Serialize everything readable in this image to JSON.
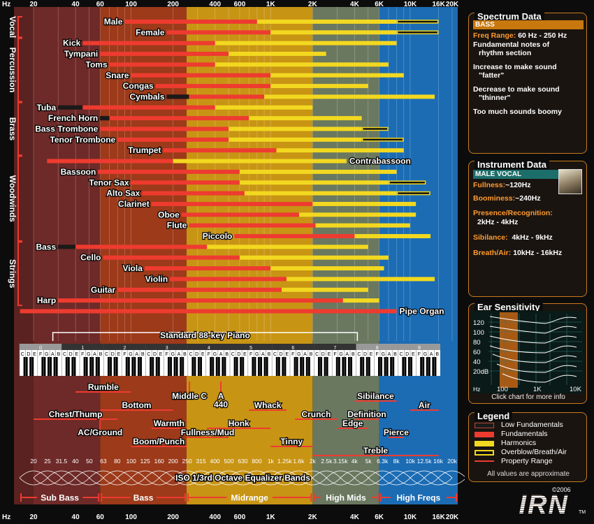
{
  "chart_data": {
    "type": "range-bar",
    "x_scale": "log",
    "xlim": [
      16,
      20000
    ],
    "top_axis": {
      "unit": "Hz",
      "ticks": [
        "20",
        "40",
        "60",
        "100",
        "200",
        "400",
        "600",
        "1K",
        "2K",
        "4K",
        "6K",
        "10K",
        "16K",
        "20K"
      ]
    },
    "bottom_axis": {
      "unit": "Hz",
      "ticks": [
        "20",
        "40",
        "60",
        "100",
        "200",
        "400",
        "600",
        "1K",
        "2K",
        "4K",
        "6K",
        "10K",
        "16K",
        "20K"
      ]
    },
    "regions": [
      {
        "name": "Sub Bass",
        "from": 20,
        "to": 60,
        "color": "#6e2a28"
      },
      {
        "name": "Bass",
        "from": 60,
        "to": 250,
        "color": "#9c3a1a"
      },
      {
        "name": "Midrange",
        "from": 250,
        "to": 2000,
        "color": "#c89414"
      },
      {
        "name": "High Mids",
        "from": 2000,
        "to": 6000,
        "color": "#6a7860"
      },
      {
        "name": "High Freqs",
        "from": 6000,
        "to": 20000,
        "color": "#1c6cb4"
      }
    ],
    "groups": [
      {
        "name": "Vocal",
        "rows": [
          0,
          1
        ]
      },
      {
        "name": "Percussion",
        "rows": [
          2,
          7
        ]
      },
      {
        "name": "Brass",
        "rows": [
          8,
          12
        ]
      },
      {
        "name": "Woodwinds",
        "rows": [
          13,
          20
        ]
      },
      {
        "name": "Strings",
        "rows": [
          21,
          26
        ]
      }
    ],
    "instruments": [
      {
        "name": "Male",
        "side": "left",
        "fund": [
          90,
          800
        ],
        "harm": [
          800,
          8000
        ],
        "over": [
          8000,
          16000
        ]
      },
      {
        "name": "Female",
        "side": "left",
        "fund": [
          180,
          1000
        ],
        "harm": [
          1000,
          8000
        ],
        "over": [
          8000,
          16000
        ]
      },
      {
        "name": "Kick",
        "side": "left",
        "fund": [
          45,
          400
        ],
        "harm": [
          400,
          8000
        ]
      },
      {
        "name": "Tympani",
        "side": "left",
        "fund": [
          60,
          500
        ],
        "harm": [
          500,
          2500
        ]
      },
      {
        "name": "Toms",
        "side": "left",
        "fund": [
          70,
          400
        ],
        "harm": [
          400,
          7000
        ]
      },
      {
        "name": "Snare",
        "side": "left",
        "fund": [
          100,
          1000
        ],
        "harm": [
          1000,
          9000
        ]
      },
      {
        "name": "Congas",
        "side": "left",
        "fund": [
          150,
          1000
        ],
        "harm": [
          1000,
          5000
        ]
      },
      {
        "name": "Cymbals",
        "side": "left",
        "low": [
          180,
          260
        ],
        "fund": [
          260,
          900
        ],
        "harm": [
          900,
          15000
        ]
      },
      {
        "name": "Tuba",
        "side": "left",
        "low": [
          30,
          45
        ],
        "fund": [
          45,
          400
        ],
        "harm": [
          400,
          2000
        ]
      },
      {
        "name": "French Horn",
        "side": "left",
        "low": [
          60,
          70
        ],
        "fund": [
          70,
          700
        ],
        "harm": [
          700,
          4500
        ]
      },
      {
        "name": "Bass Trombone",
        "side": "left",
        "fund": [
          60,
          500
        ],
        "harm": [
          500,
          4500
        ],
        "over": [
          4500,
          7000
        ]
      },
      {
        "name": "Tenor Trombone",
        "side": "left",
        "fund": [
          80,
          500
        ],
        "harm": [
          500,
          4500
        ],
        "over": [
          4500,
          9000
        ]
      },
      {
        "name": "Trumpet",
        "side": "left",
        "fund": [
          170,
          1100
        ],
        "harm": [
          1100,
          9000
        ]
      },
      {
        "name": "Contrabassoon",
        "side": "right",
        "fund": [
          25,
          200
        ],
        "harm": [
          200,
          3500
        ]
      },
      {
        "name": "Bassoon",
        "side": "left",
        "fund": [
          58,
          600
        ],
        "harm": [
          600,
          8000
        ]
      },
      {
        "name": "Tenor Sax",
        "side": "left",
        "fund": [
          100,
          600
        ],
        "harm": [
          600,
          7000
        ],
        "over": [
          7000,
          13000
        ]
      },
      {
        "name": "Alto Sax",
        "side": "left",
        "fund": [
          120,
          650
        ],
        "harm": [
          650,
          8000
        ],
        "over": [
          8000,
          14000
        ]
      },
      {
        "name": "Clarinet",
        "side": "left",
        "fund": [
          140,
          2000
        ],
        "harm": [
          2000,
          11000
        ]
      },
      {
        "name": "Oboe",
        "side": "left",
        "fund": [
          230,
          1600
        ],
        "harm": [
          1600,
          11000
        ]
      },
      {
        "name": "Flute",
        "side": "left",
        "fund": [
          260,
          2100
        ],
        "harm": [
          2100,
          10000
        ]
      },
      {
        "name": "Piccolo",
        "side": "left",
        "fund": [
          550,
          4000
        ],
        "harm": [
          4000,
          14000
        ]
      },
      {
        "name": "Bass",
        "side": "left",
        "low": [
          30,
          40
        ],
        "fund": [
          40,
          350
        ],
        "harm": [
          350,
          5000
        ]
      },
      {
        "name": "Cello",
        "side": "left",
        "fund": [
          63,
          600
        ],
        "harm": [
          600,
          7000
        ]
      },
      {
        "name": "Viola",
        "side": "left",
        "fund": [
          125,
          1000
        ],
        "harm": [
          1000,
          6500
        ]
      },
      {
        "name": "Violin",
        "side": "left",
        "fund": [
          190,
          1300
        ],
        "harm": [
          1300,
          15000
        ]
      },
      {
        "name": "Guitar",
        "side": "left",
        "fund": [
          80,
          1200
        ],
        "harm": [
          1200,
          5000
        ]
      },
      {
        "name": "Harp",
        "side": "left",
        "fund": [
          30,
          3300
        ],
        "harm": [
          3300,
          6000
        ]
      },
      {
        "name": "Pipe Organ",
        "side": "right",
        "fund": [
          16,
          8000
        ]
      }
    ],
    "piano": {
      "label": "Standard 88-key Piano",
      "range": [
        27.5,
        4186
      ],
      "octaves": [
        "0",
        "1",
        "2",
        "3",
        "4",
        "5",
        "6",
        "7",
        "8",
        "9"
      ],
      "keys": "CDEFGAB"
    },
    "properties": [
      {
        "name": "Rumble",
        "from": 40,
        "to": 100,
        "row": 0
      },
      {
        "name": "Bottom",
        "from": 60,
        "to": 200,
        "row": 2
      },
      {
        "name": "Chest/Thump",
        "from": 20,
        "to": 80,
        "row": 3
      },
      {
        "name": "AC/Ground",
        "from": 60,
        "to": 60,
        "row": 5
      },
      {
        "name": "Warmth",
        "from": 140,
        "to": 250,
        "row": 4
      },
      {
        "name": "Boom/Punch",
        "from": 100,
        "to": 250,
        "row": 6
      },
      {
        "name": "Middle C",
        "from": 262,
        "to": 262,
        "row": 1
      },
      {
        "name": "A 440",
        "from": 440,
        "to": 440,
        "row": 1
      },
      {
        "name": "Fullness/Mud",
        "from": 250,
        "to": 500,
        "row": 5
      },
      {
        "name": "Honk",
        "from": 350,
        "to": 1000,
        "row": 4
      },
      {
        "name": "Whack",
        "from": 700,
        "to": 1300,
        "row": 2
      },
      {
        "name": "Tinny",
        "from": 1000,
        "to": 2000,
        "row": 6
      },
      {
        "name": "Crunch",
        "from": 1500,
        "to": 3000,
        "row": 3
      },
      {
        "name": "Sibilance",
        "from": 4000,
        "to": 8000,
        "row": 1
      },
      {
        "name": "Edge",
        "from": 3000,
        "to": 5000,
        "row": 4
      },
      {
        "name": "Definition",
        "from": 4000,
        "to": 6000,
        "row": 3
      },
      {
        "name": "Pierce",
        "from": 7000,
        "to": 9000,
        "row": 5
      },
      {
        "name": "Air",
        "from": 10000,
        "to": 16000,
        "row": 2
      },
      {
        "name": "Treble",
        "from": 2000,
        "to": 16000,
        "row": 7
      }
    ],
    "eq_bands": {
      "label": "ISO 1/3rd Octave Equalizer Bands",
      "values": [
        "20",
        "25",
        "31.5",
        "40",
        "50",
        "63",
        "80",
        "100",
        "125",
        "160",
        "200",
        "250",
        "315",
        "400",
        "500",
        "630",
        "800",
        "1k",
        "1.25k",
        "1.6k",
        "2k",
        "2.5k",
        "3.15k",
        "4k",
        "5k",
        "6.3k",
        "8k",
        "10k",
        "12.5k",
        "16k",
        "20k"
      ]
    },
    "ranges_bar": [
      "Sub Bass",
      "Bass",
      "Midrange",
      "High Mids",
      "High Freqs"
    ]
  },
  "spectrum": {
    "title": "Spectrum Data",
    "tag": "BASS",
    "freq_label": "Freq Range:",
    "freq_value": "60 Hz - 250 Hz",
    "lines": [
      "Fundamental notes of",
      "rhythm section",
      "Increase to make sound",
      "\"fatter\"",
      "Decrease to make sound",
      "\"thinner\"",
      "Too much sounds boomy"
    ]
  },
  "instrument": {
    "title": "Instrument Data",
    "tag": "MALE VOCAL",
    "fullness_label": "Fullness:",
    "fullness_value": "~120Hz",
    "boominess_label": "Boominess:",
    "boominess_value": "~240Hz",
    "presence_label": "Presence/Recognition:",
    "presence_value": "2kHz - 4kHz",
    "sibilance_label": "Sibilance:",
    "sibilance_value": "4kHz - 9kHz",
    "breath_label": "Breath/Air:",
    "breath_value": "10kHz - 16kHz"
  },
  "ear": {
    "title": "Ear Sensitivity",
    "y_ticks": [
      "120",
      "100",
      "80",
      "60",
      "40",
      "20dB"
    ],
    "x_ticks": [
      "Hz",
      "100",
      "1K",
      "10K"
    ],
    "note": "Click chart for more info"
  },
  "legend": {
    "title": "Legend",
    "items": [
      "Low Fundamentals",
      "Fundamentals",
      "Harmonics",
      "Overblow/Breath/Air",
      "Property Range"
    ],
    "note": "All values are approximate"
  },
  "brand": {
    "copyright": "©2006",
    "logo": "IRN",
    "tm": "TM"
  },
  "colors": {
    "fund": "#ee3b30",
    "harm": "#f2d820",
    "low": "#1a1a1a",
    "accent": "#c87a1e"
  }
}
